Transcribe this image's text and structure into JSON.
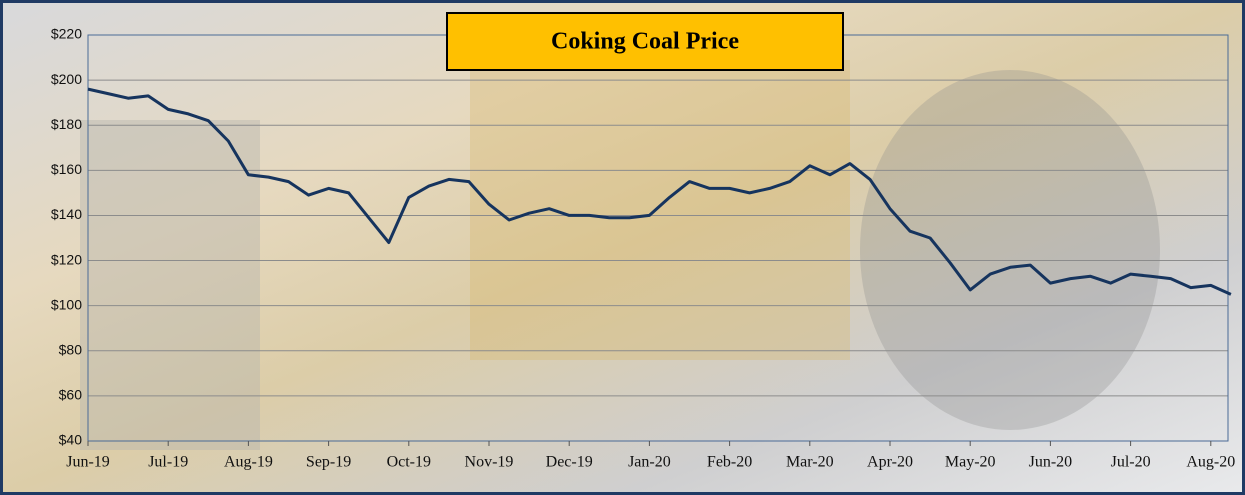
{
  "chart_data": {
    "type": "line",
    "title": "Coking Coal Price",
    "categories": [
      "Jun-19",
      null,
      null,
      null,
      "Jul-19",
      null,
      null,
      null,
      "Aug-19",
      null,
      null,
      null,
      "Sep-19",
      null,
      null,
      null,
      "Oct-19",
      null,
      null,
      null,
      "Nov-19",
      null,
      null,
      null,
      "Dec-19",
      null,
      null,
      null,
      "Jan-20",
      null,
      null,
      null,
      "Feb-20",
      null,
      null,
      null,
      "Mar-20",
      null,
      null,
      null,
      "Apr-20",
      null,
      null,
      null,
      "May-20",
      null,
      null,
      null,
      "Jun-20",
      null,
      null,
      null,
      "Jul-20",
      null,
      null,
      null,
      "Aug-20",
      null
    ],
    "series": [
      {
        "name": "Coking Coal Price",
        "color": "#16345e",
        "values": [
          196,
          194,
          192,
          193,
          187,
          185,
          182,
          173,
          158,
          157,
          155,
          149,
          152,
          150,
          139,
          128,
          148,
          153,
          156,
          155,
          145,
          138,
          141,
          143,
          140,
          140,
          139,
          139,
          140,
          148,
          155,
          152,
          152,
          150,
          152,
          155,
          162,
          158,
          163,
          156,
          143,
          133,
          130,
          119,
          107,
          114,
          117,
          118,
          110,
          112,
          113,
          110,
          114,
          113,
          112,
          108,
          109,
          105
        ]
      }
    ],
    "ylim": [
      40,
      220
    ],
    "yticks": [
      {
        "value": 40,
        "label": "$40"
      },
      {
        "value": 60,
        "label": "$60"
      },
      {
        "value": 80,
        "label": "$80"
      },
      {
        "value": 100,
        "label": "$100"
      },
      {
        "value": 120,
        "label": "$120"
      },
      {
        "value": 140,
        "label": "$140"
      },
      {
        "value": 160,
        "label": "$160"
      },
      {
        "value": 180,
        "label": "$180"
      },
      {
        "value": 200,
        "label": "$200"
      },
      {
        "value": 220,
        "label": "$220"
      }
    ],
    "grid": true
  }
}
